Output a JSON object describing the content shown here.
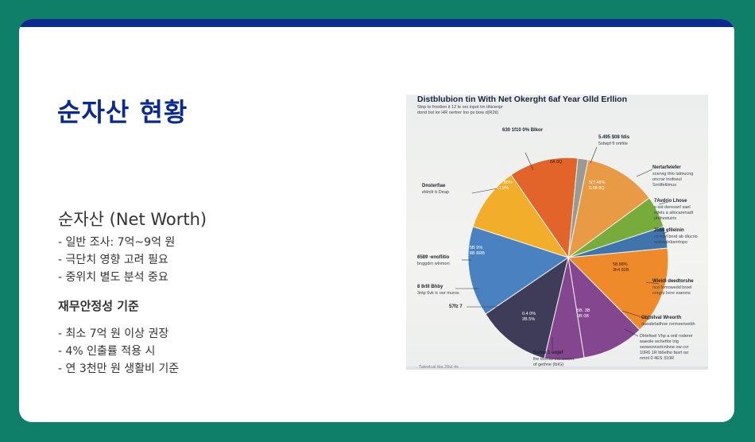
{
  "slide": {
    "title": "순자산 현황",
    "section_heading": "순자산 (Net Worth)",
    "section_items": [
      "- 일반 조사: 7억~9억 원",
      "- 극단치 영향 고려 필요",
      "- 중위치 별도 분석 중요"
    ],
    "sub_heading": "재무안정성 기준",
    "sub_items": [
      "- 최소 7억 원 이상 권장",
      "- 4% 인출률 적용 시",
      "- 연 3천만 원 생활비 기준"
    ]
  },
  "chart_image": {
    "title": "Distblubion tin With Net Okerght 6af Year Glld Erllion",
    "subtitle_lines": [
      "Stnp to frontion it 12 le ors inpot trn tihicenpr",
      "dond bol lor HR oertrer Ino ps bow d(R2ti)"
    ],
    "colors": {
      "orange_dark": "#e2642a",
      "grey": "#9a9a95",
      "orange_light": "#e89a45",
      "green": "#77ab3b",
      "blue_small": "#3f74ad",
      "orange": "#ee8a2a",
      "purple": "#84468f",
      "navy": "#3f3c5a",
      "blue": "#4a82c1",
      "yellow": "#f2ae2b"
    },
    "slice_labels": {
      "s1": "8A 8Q",
      "s2a": "187.88%",
      "s2b": "4.1 9%",
      "s3a": "5(7.48%",
      "s3b": "0.08 8Q",
      "s4a": "5B 9%",
      "s4b": "8B 8RB",
      "s5a": "0.4 0%",
      "s5b": "2B.5%",
      "s6a": "5B. 3B",
      "s6b": "0B 0B",
      "s7a": "58.88%",
      "s7b": "3h4 82B"
    },
    "callouts": [
      {
        "head": "630 1f10 0% Blkor",
        "lines": []
      },
      {
        "head": "5.495 $08 fdis",
        "lines": [
          "5stwpf fl ortrlite"
        ]
      },
      {
        "head": "Nertarfelefer",
        "lines": [
          "scervig thlo lalmucng",
          "oncrar tnofoeul",
          "Srnlifetlimus"
        ]
      },
      {
        "head": "Dnsterfiae",
        "lines": [
          "eldnilr b Deap"
        ]
      },
      {
        "head": "7Avdrio Lhose",
        "lines": [
          "s-sid dereswrl sael",
          "edels a allocarenadl",
          "utrihestuiris"
        ]
      },
      {
        "head": "25$8 efilelnin",
        "lines": [
          "co lnwl bnrd ab dlucrio",
          "ecleoalnbsnrtnpo"
        ]
      },
      {
        "head": "6589 -enoflitio",
        "lines": [
          "bnggdrn wlnmon"
        ]
      },
      {
        "head": "Wieldl deedtorshe",
        "lines": [
          "ncd fomowedd broel",
          "cnrgrp lorre eaeons"
        ]
      },
      {
        "head": "8 8rIll Bhby",
        "lines": [
          "3ntp 6vk ic oor muros"
        ]
      },
      {
        "head": "Obtnilval Wreorth",
        "lines": [
          "daeabrlaithoe rorrneenvebh"
        ]
      },
      {
        "head": "57fz 7",
        "lines": []
      },
      {
        "head": "Dlrtefwel Vhp a onil roderer",
        "lines": [
          "waeole wchetfor trig",
          "seowsnnsrtcnlnne ow cvr",
          "10R6 1R lb6elho fasrt rar",
          "nmnl 0 4ES 310R"
        ]
      },
      {
        "head": "Some 1 unjef",
        "lines": [
          "lhe tnonfw ent wewet",
          "of gethne (lbIG)"
        ]
      }
    ],
    "footer_text": "Taleolcal tba 20ul 4s"
  }
}
